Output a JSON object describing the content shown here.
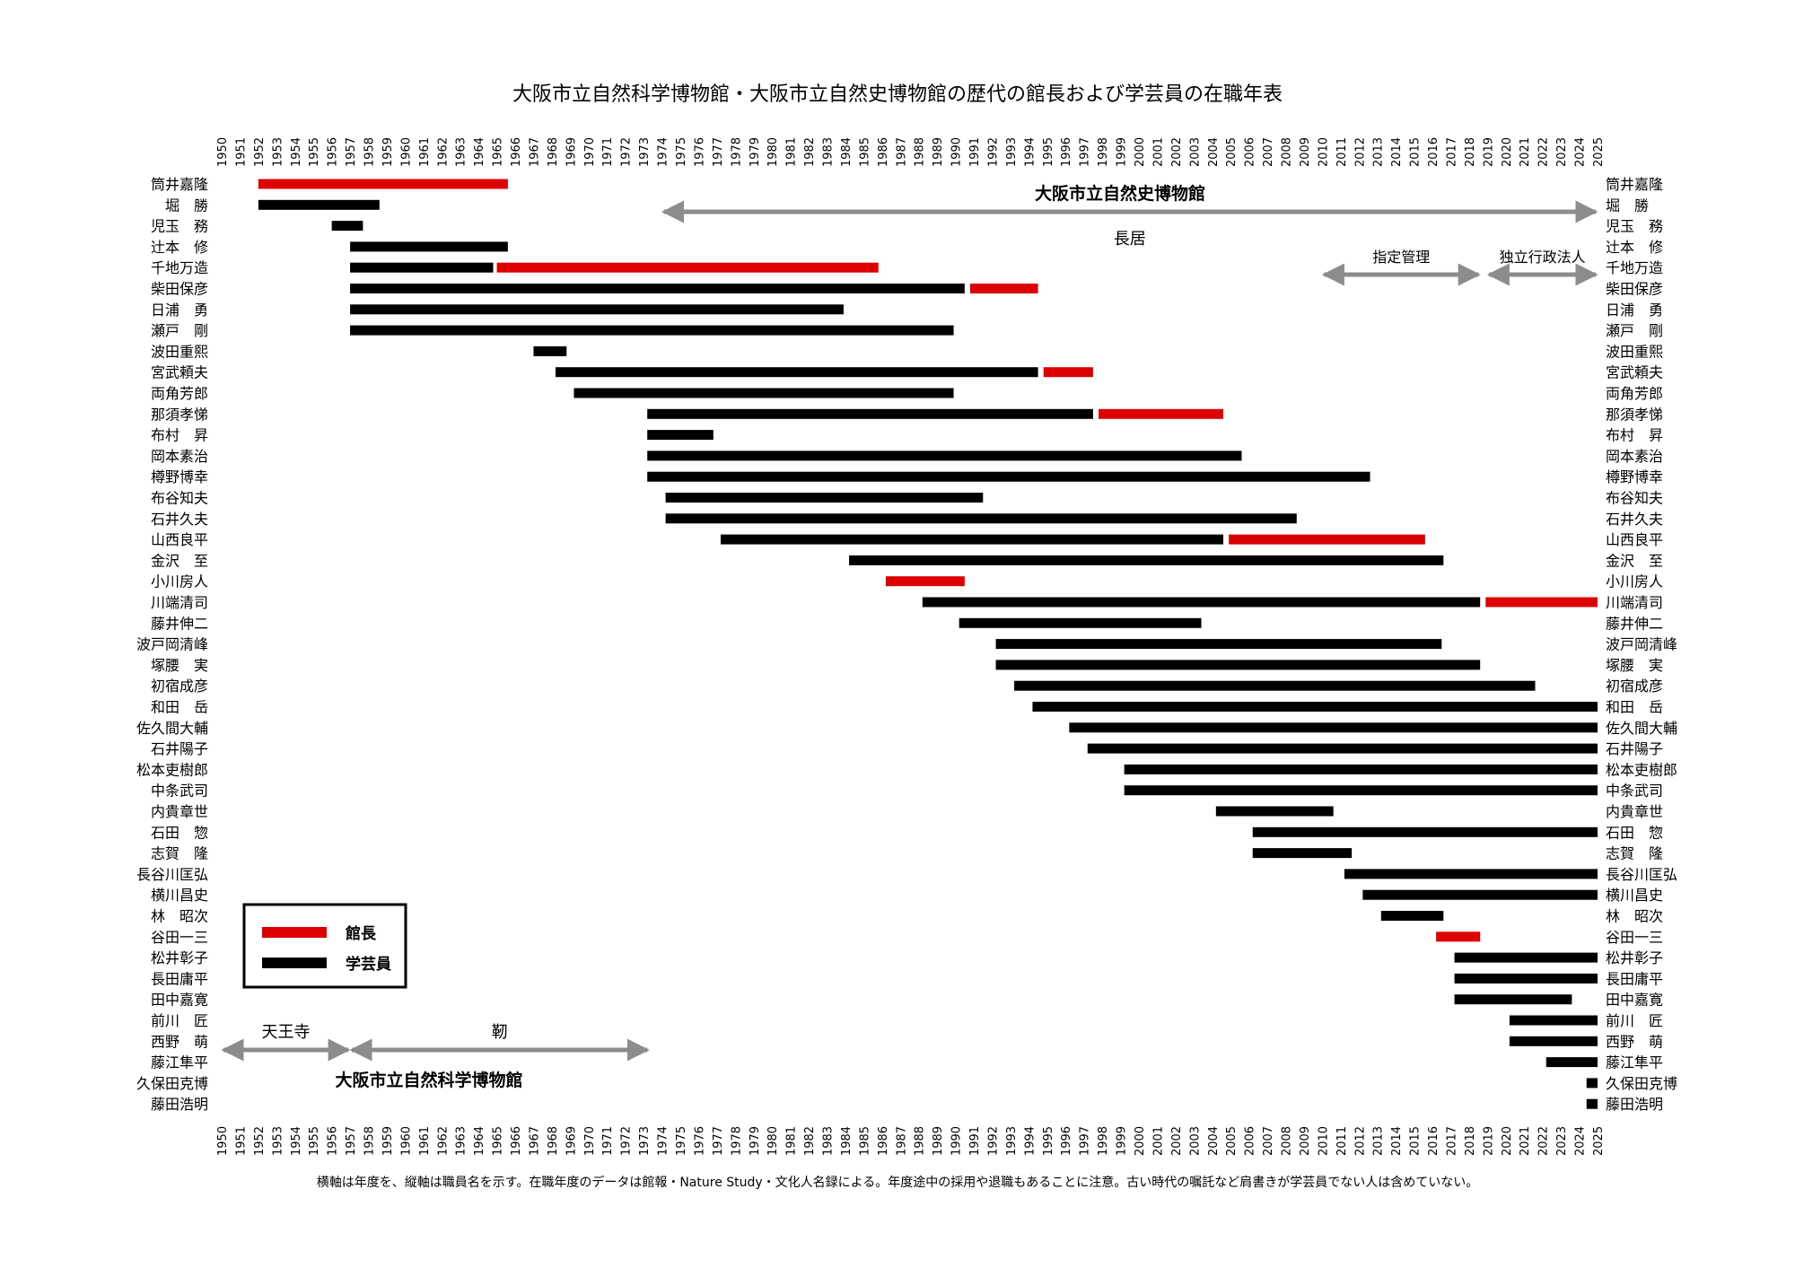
{
  "chart_data": {
    "type": "bar",
    "subtype": "gantt",
    "title": "大阪市立自然科学博物館・大阪市立自然史博物館の歴代の館長および学芸員の在職年表",
    "xlim": [
      1950,
      2025
    ],
    "x_ticks": [
      "1950",
      "1951",
      "1952",
      "1953",
      "1954",
      "1955",
      "1956",
      "1957",
      "1958",
      "1959",
      "1960",
      "1961",
      "1962",
      "1963",
      "1964",
      "1965",
      "1966",
      "1967",
      "1968",
      "1969",
      "1970",
      "1971",
      "1972",
      "1973",
      "1974",
      "1975",
      "1976",
      "1977",
      "1978",
      "1979",
      "1980",
      "1981",
      "1982",
      "1983",
      "1984",
      "1985",
      "1986",
      "1987",
      "1988",
      "1989",
      "1990",
      "1991",
      "1992",
      "1993",
      "1994",
      "1995",
      "1996",
      "1997",
      "1998",
      "1999",
      "2000",
      "2001",
      "2002",
      "2003",
      "2004",
      "2005",
      "2006",
      "2007",
      "2008",
      "2009",
      "2010",
      "2011",
      "2012",
      "2013",
      "2014",
      "2015",
      "2016",
      "2017",
      "2018",
      "2019",
      "2020",
      "2021",
      "2022",
      "2023",
      "2024",
      "2025"
    ],
    "series": [
      {
        "key": "director",
        "name": "館長",
        "color": "#dd0000"
      },
      {
        "key": "curator",
        "name": "学芸員",
        "color": "#000000"
      }
    ],
    "rows": [
      {
        "name": "筒井嘉隆",
        "segments": [
          {
            "start": 1952,
            "end": 1965.6,
            "role": "director"
          }
        ]
      },
      {
        "name": "堀　勝",
        "segments": [
          {
            "start": 1952,
            "end": 1958.6,
            "role": "curator"
          }
        ]
      },
      {
        "name": "児玉　務",
        "segments": [
          {
            "start": 1956,
            "end": 1957.7,
            "role": "curator"
          }
        ]
      },
      {
        "name": "辻本　修",
        "segments": [
          {
            "start": 1957,
            "end": 1965.6,
            "role": "curator"
          }
        ]
      },
      {
        "name": "千地万造",
        "segments": [
          {
            "start": 1957,
            "end": 1964.8,
            "role": "curator"
          },
          {
            "start": 1965.0,
            "end": 1985.8,
            "role": "director"
          }
        ]
      },
      {
        "name": "柴田保彦",
        "segments": [
          {
            "start": 1957,
            "end": 1990.5,
            "role": "curator"
          },
          {
            "start": 1990.8,
            "end": 1994.5,
            "role": "director"
          }
        ]
      },
      {
        "name": "日浦　勇",
        "segments": [
          {
            "start": 1957,
            "end": 1983.9,
            "role": "curator"
          }
        ]
      },
      {
        "name": "瀬戸　剛",
        "segments": [
          {
            "start": 1957,
            "end": 1989.9,
            "role": "curator"
          }
        ]
      },
      {
        "name": "波田重熙",
        "segments": [
          {
            "start": 1967,
            "end": 1968.8,
            "role": "curator"
          }
        ]
      },
      {
        "name": "宮武頼夫",
        "segments": [
          {
            "start": 1968.2,
            "end": 1994.5,
            "role": "curator"
          },
          {
            "start": 1994.8,
            "end": 1997.5,
            "role": "director"
          }
        ]
      },
      {
        "name": "両角芳郎",
        "segments": [
          {
            "start": 1969.2,
            "end": 1989.9,
            "role": "curator"
          }
        ]
      },
      {
        "name": "那須孝悌",
        "segments": [
          {
            "start": 1973.2,
            "end": 1997.5,
            "role": "curator"
          },
          {
            "start": 1997.8,
            "end": 2004.6,
            "role": "director"
          }
        ]
      },
      {
        "name": "布村　昇",
        "segments": [
          {
            "start": 1973.2,
            "end": 1976.8,
            "role": "curator"
          }
        ]
      },
      {
        "name": "岡本素治",
        "segments": [
          {
            "start": 1973.2,
            "end": 2005.6,
            "role": "curator"
          }
        ]
      },
      {
        "name": "樽野博幸",
        "segments": [
          {
            "start": 1973.2,
            "end": 2012.6,
            "role": "curator"
          }
        ]
      },
      {
        "name": "布谷知夫",
        "segments": [
          {
            "start": 1974.2,
            "end": 1991.5,
            "role": "curator"
          }
        ]
      },
      {
        "name": "石井久夫",
        "segments": [
          {
            "start": 1974.2,
            "end": 2008.6,
            "role": "curator"
          }
        ]
      },
      {
        "name": "山西良平",
        "segments": [
          {
            "start": 1977.2,
            "end": 2004.6,
            "role": "curator"
          },
          {
            "start": 2004.9,
            "end": 2015.6,
            "role": "director"
          }
        ]
      },
      {
        "name": "金沢　至",
        "segments": [
          {
            "start": 1984.2,
            "end": 2016.6,
            "role": "curator"
          }
        ]
      },
      {
        "name": "小川房人",
        "segments": [
          {
            "start": 1986.2,
            "end": 1990.5,
            "role": "director"
          }
        ]
      },
      {
        "name": "川端清司",
        "segments": [
          {
            "start": 1988.2,
            "end": 2018.6,
            "role": "curator"
          },
          {
            "start": 2018.9,
            "end": 2025.0,
            "role": "director"
          }
        ]
      },
      {
        "name": "藤井伸二",
        "segments": [
          {
            "start": 1990.2,
            "end": 2003.4,
            "role": "curator"
          }
        ]
      },
      {
        "name": "波戸岡清峰",
        "segments": [
          {
            "start": 1992.2,
            "end": 2016.5,
            "role": "curator"
          }
        ]
      },
      {
        "name": "塚腰　実",
        "segments": [
          {
            "start": 1992.2,
            "end": 2018.6,
            "role": "curator"
          }
        ]
      },
      {
        "name": "初宿成彦",
        "segments": [
          {
            "start": 1993.2,
            "end": 2021.6,
            "role": "curator"
          }
        ]
      },
      {
        "name": "和田　岳",
        "segments": [
          {
            "start": 1994.2,
            "end": 2025.0,
            "role": "curator"
          }
        ]
      },
      {
        "name": "佐久間大輔",
        "segments": [
          {
            "start": 1996.2,
            "end": 2025.0,
            "role": "curator"
          }
        ]
      },
      {
        "name": "石井陽子",
        "segments": [
          {
            "start": 1997.2,
            "end": 2025.0,
            "role": "curator"
          }
        ]
      },
      {
        "name": "松本吏樹郎",
        "segments": [
          {
            "start": 1999.2,
            "end": 2025.0,
            "role": "curator"
          }
        ]
      },
      {
        "name": "中条武司",
        "segments": [
          {
            "start": 1999.2,
            "end": 2025.0,
            "role": "curator"
          }
        ]
      },
      {
        "name": "内貴章世",
        "segments": [
          {
            "start": 2004.2,
            "end": 2010.6,
            "role": "curator"
          }
        ]
      },
      {
        "name": "石田　惣",
        "segments": [
          {
            "start": 2006.2,
            "end": 2025.0,
            "role": "curator"
          }
        ]
      },
      {
        "name": "志賀　隆",
        "segments": [
          {
            "start": 2006.2,
            "end": 2011.6,
            "role": "curator"
          }
        ]
      },
      {
        "name": "長谷川匡弘",
        "segments": [
          {
            "start": 2011.2,
            "end": 2025.0,
            "role": "curator"
          }
        ]
      },
      {
        "name": "横川昌史",
        "segments": [
          {
            "start": 2012.2,
            "end": 2025.0,
            "role": "curator"
          }
        ]
      },
      {
        "name": "林　昭次",
        "segments": [
          {
            "start": 2013.2,
            "end": 2016.6,
            "role": "curator"
          }
        ]
      },
      {
        "name": "谷田一三",
        "segments": [
          {
            "start": 2016.2,
            "end": 2018.6,
            "role": "director"
          }
        ]
      },
      {
        "name": "松井彰子",
        "segments": [
          {
            "start": 2017.2,
            "end": 2025.0,
            "role": "curator"
          }
        ]
      },
      {
        "name": "長田庸平",
        "segments": [
          {
            "start": 2017.2,
            "end": 2025.0,
            "role": "curator"
          }
        ]
      },
      {
        "name": "田中嘉寛",
        "segments": [
          {
            "start": 2017.2,
            "end": 2023.6,
            "role": "curator"
          }
        ]
      },
      {
        "name": "前川　匠",
        "segments": [
          {
            "start": 2020.2,
            "end": 2025.0,
            "role": "curator"
          }
        ]
      },
      {
        "name": "西野　萌",
        "segments": [
          {
            "start": 2020.2,
            "end": 2025.0,
            "role": "curator"
          }
        ]
      },
      {
        "name": "藤江隼平",
        "segments": [
          {
            "start": 2022.2,
            "end": 2025.0,
            "role": "curator"
          }
        ]
      },
      {
        "name": "久保田克博",
        "segments": [
          {
            "start": 2024.4,
            "end": 2025.0,
            "role": "curator"
          }
        ]
      },
      {
        "name": "藤田浩明",
        "segments": [
          {
            "start": 2024.4,
            "end": 2025.0,
            "role": "curator"
          }
        ]
      }
    ],
    "eras": [
      {
        "label": "天王寺",
        "start": 1950,
        "end": 1957,
        "label_position": "above"
      },
      {
        "label": "靭",
        "start": 1957,
        "end": 1973.3,
        "label_position": "above"
      },
      {
        "label": "長居",
        "start": 1974,
        "end": 2025,
        "label_position": "below"
      },
      {
        "label": "指定管理",
        "start": 2010,
        "end": 2018.6,
        "label_position": "above"
      },
      {
        "label": "独立行政法人",
        "start": 2019,
        "end": 2025,
        "label_position": "above"
      }
    ],
    "museum_labels": [
      {
        "label": "大阪市立自然史博物館",
        "context": "top-right"
      },
      {
        "label": "大阪市立自然科学博物館",
        "context": "bottom-left"
      }
    ],
    "legend": {
      "position": "bottom-left",
      "entries": [
        {
          "label": "館長",
          "role": "director"
        },
        {
          "label": "学芸員",
          "role": "curator"
        }
      ]
    },
    "footnote": "横軸は年度を、縦軸は職員名を示す。在職年度のデータは館報・Nature Study・文化人名録による。年度途中の採用や退職もあることに注意。古い時代の嘱託など肩書きが学芸員でない人は含めていない。"
  }
}
